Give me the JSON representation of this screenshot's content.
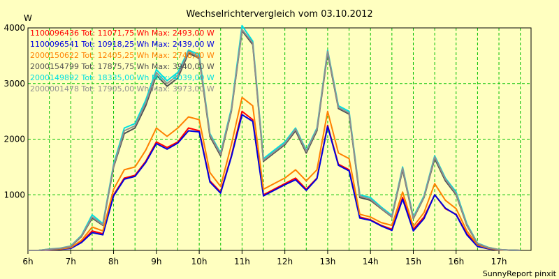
{
  "chart_data": {
    "type": "line",
    "title": "Wechselrichtervergleich vom 03.10.2012",
    "ylabel": "W",
    "xlabel": "",
    "ylim": [
      0,
      4000
    ],
    "xlim": [
      6.0,
      17.75
    ],
    "y_ticks": [
      1000,
      2000,
      3000,
      4000
    ],
    "y_tick_labels": [
      "1000",
      "2000",
      "3000",
      "4000"
    ],
    "x_ticks": [
      6,
      7,
      8,
      9,
      10,
      11,
      12,
      13,
      14,
      15,
      16,
      17
    ],
    "x_tick_labels": [
      "6h",
      "7h",
      "8h",
      "9h",
      "10h",
      "11h",
      "12h",
      "13h",
      "14h",
      "15h",
      "16h",
      "17h"
    ],
    "grid": true,
    "legend_position": "top-left",
    "footer": "SunnyReport pinxit",
    "x": [
      6.0,
      6.25,
      6.5,
      6.75,
      7.0,
      7.25,
      7.5,
      7.75,
      8.0,
      8.25,
      8.5,
      8.75,
      9.0,
      9.25,
      9.5,
      9.75,
      10.0,
      10.25,
      10.5,
      10.75,
      11.0,
      11.25,
      11.5,
      11.75,
      12.0,
      12.25,
      12.5,
      12.75,
      13.0,
      13.25,
      13.5,
      13.75,
      14.0,
      14.25,
      14.5,
      14.75,
      15.0,
      15.25,
      15.5,
      15.75,
      16.0,
      16.25,
      16.5,
      16.75,
      17.0,
      17.25,
      17.5
    ],
    "series": [
      {
        "name": "1100096436 Tot: 11071,75 Wh Max: 2493,00 W",
        "color": "#ff0000",
        "values": [
          0,
          0,
          10,
          20,
          40,
          150,
          350,
          300,
          1000,
          1300,
          1350,
          1600,
          1950,
          1850,
          1950,
          2200,
          2150,
          1250,
          1050,
          1700,
          2500,
          2350,
          1000,
          1100,
          1200,
          1300,
          1100,
          1300,
          2250,
          1550,
          1450,
          600,
          550,
          450,
          380,
          950,
          380,
          600,
          1000,
          750,
          650,
          300,
          80,
          30,
          10,
          5,
          0
        ]
      },
      {
        "name": "1100096541 Tot: 10918,25 Wh Max: 2439,00 W",
        "color": "#0000e0",
        "values": [
          0,
          0,
          10,
          20,
          35,
          140,
          320,
          280,
          980,
          1280,
          1330,
          1580,
          1920,
          1820,
          1930,
          2150,
          2130,
          1230,
          1030,
          1680,
          2440,
          2320,
          980,
          1080,
          1180,
          1270,
          1080,
          1290,
          2230,
          1530,
          1430,
          580,
          540,
          440,
          360,
          920,
          350,
          570,
          1000,
          760,
          640,
          280,
          70,
          30,
          10,
          5,
          0
        ]
      },
      {
        "name": "2000150622 Tot: 12405,25 Wh Max: 2748,00 W",
        "color": "#ff8000",
        "values": [
          0,
          0,
          15,
          25,
          50,
          180,
          420,
          350,
          1100,
          1450,
          1500,
          1800,
          2200,
          2050,
          2200,
          2400,
          2350,
          1400,
          1150,
          1900,
          2750,
          2600,
          1100,
          1200,
          1300,
          1450,
          1250,
          1450,
          2500,
          1750,
          1650,
          650,
          600,
          500,
          450,
          1050,
          430,
          680,
          1200,
          900,
          750,
          350,
          100,
          40,
          10,
          5,
          0
        ]
      },
      {
        "name": "2000154799 Tot: 17875,75 Wh Max: 3940,00 W",
        "color": "#505050",
        "values": [
          0,
          0,
          20,
          35,
          70,
          250,
          580,
          450,
          1500,
          2100,
          2200,
          2600,
          3150,
          2950,
          3100,
          3550,
          3450,
          2050,
          1700,
          2500,
          3950,
          3700,
          1600,
          1750,
          1900,
          2150,
          1750,
          2150,
          3550,
          2550,
          2450,
          950,
          900,
          750,
          600,
          1450,
          570,
          950,
          1650,
          1250,
          1000,
          450,
          120,
          50,
          15,
          5,
          0
        ]
      },
      {
        "name": "2000149892 Tot: 18335,00 Wh Max: 4039,00 W",
        "color": "#00e0e0",
        "values": [
          0,
          0,
          25,
          40,
          80,
          270,
          640,
          480,
          1550,
          2200,
          2280,
          2700,
          3250,
          3050,
          3200,
          3600,
          3520,
          2100,
          1750,
          2550,
          4040,
          3760,
          1650,
          1800,
          1950,
          2200,
          1800,
          2200,
          3600,
          2600,
          2500,
          1000,
          950,
          780,
          630,
          1500,
          600,
          980,
          1700,
          1300,
          1050,
          480,
          130,
          55,
          15,
          5,
          0
        ]
      },
      {
        "name": "2000001478 Tot: 17905,00 Wh Max: 3973,00 W",
        "color": "#909090",
        "values": [
          0,
          0,
          22,
          38,
          75,
          260,
          600,
          460,
          1520,
          2150,
          2240,
          2650,
          3200,
          3000,
          3150,
          3580,
          3480,
          2080,
          1730,
          2520,
          3970,
          3730,
          1620,
          1770,
          1920,
          2180,
          1780,
          2180,
          3580,
          2570,
          2470,
          980,
          920,
          760,
          610,
          1480,
          580,
          960,
          1680,
          1280,
          1020,
          460,
          125,
          52,
          15,
          5,
          0
        ]
      }
    ]
  }
}
